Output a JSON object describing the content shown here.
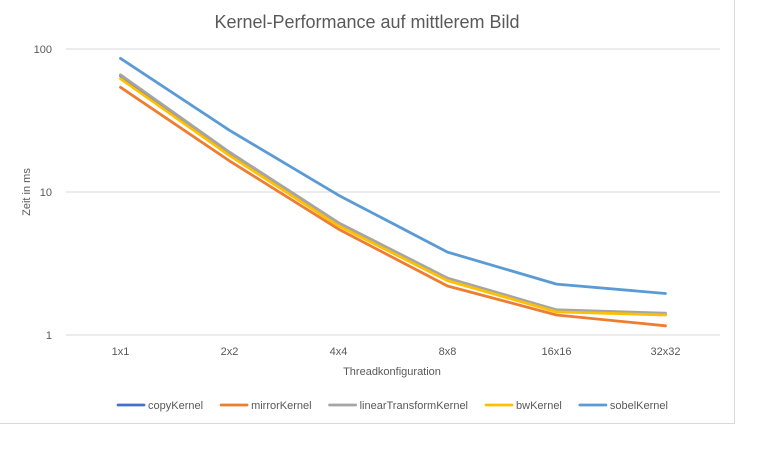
{
  "chart_data": {
    "type": "line",
    "title": "Kernel-Performance auf mittlerem Bild",
    "xlabel": "Threadkonfiguration",
    "ylabel": "Zeit in ms",
    "y_scale": "log",
    "ylim": [
      1,
      100
    ],
    "y_ticks": [
      "1",
      "10",
      "100"
    ],
    "categories": [
      "1x1",
      "2x2",
      "4x4",
      "8x8",
      "16x16",
      "32x32"
    ],
    "grid": true,
    "legend_position": "bottom",
    "series": [
      {
        "name": "copyKernel",
        "color": "#4472c4",
        "values": [
          65,
          18.5,
          6.0,
          2.45,
          1.48,
          1.4
        ]
      },
      {
        "name": "mirrorKernel",
        "color": "#ed7d31",
        "values": [
          54,
          16.5,
          5.5,
          2.2,
          1.38,
          1.16
        ]
      },
      {
        "name": "linearTransformKernel",
        "color": "#a5a5a5",
        "values": [
          66,
          19,
          6.1,
          2.5,
          1.5,
          1.42
        ]
      },
      {
        "name": "bwKernel",
        "color": "#ffc000",
        "values": [
          62,
          18,
          5.8,
          2.4,
          1.45,
          1.38
        ]
      },
      {
        "name": "sobelKernel",
        "color": "#5b9bd5",
        "values": [
          86,
          27,
          9.5,
          3.8,
          2.27,
          1.95
        ]
      }
    ]
  }
}
